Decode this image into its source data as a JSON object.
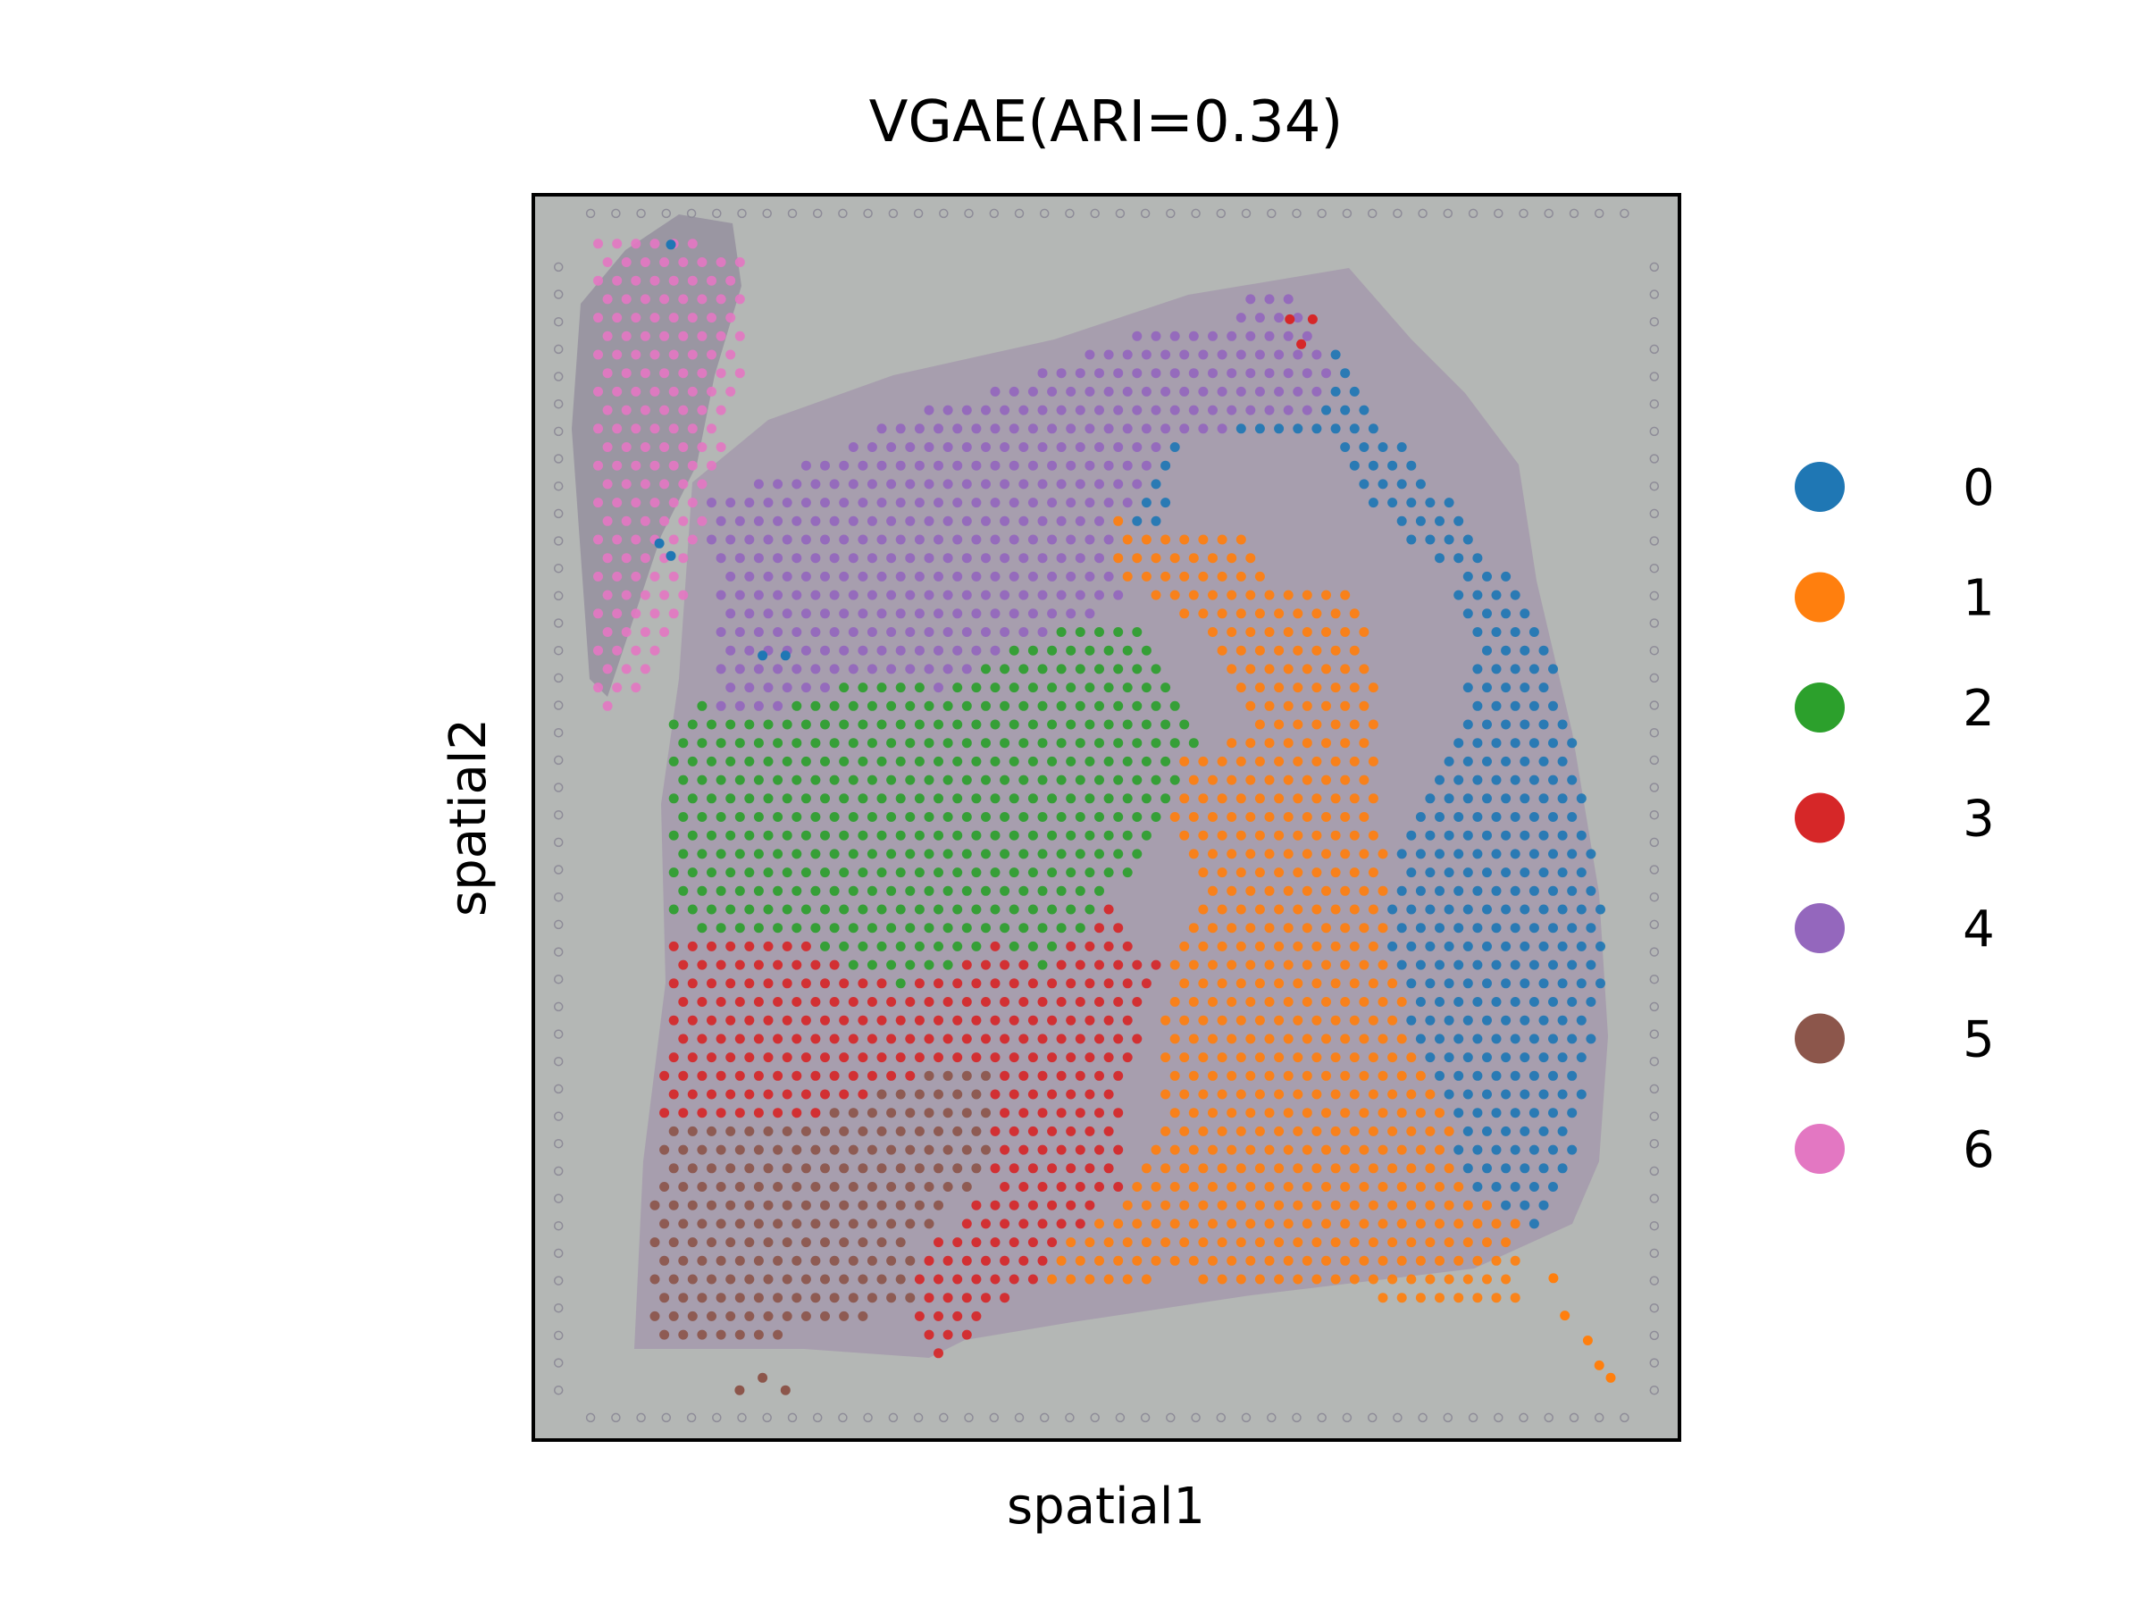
{
  "chart_data": {
    "type": "scatter",
    "title": "VGAE(ARI=0.34)",
    "xlabel": "spatial1",
    "ylabel": "spatial2",
    "xlim": [
      0,
      100
    ],
    "ylim": [
      0,
      100
    ],
    "axis_ticks": "none",
    "grid": false,
    "legend_placement": "right",
    "background": "tissue image",
    "dot_spacing": 1.65,
    "series": [
      {
        "name": "0",
        "color": "#1f77b4"
      },
      {
        "name": "1",
        "color": "#ff7f0e"
      },
      {
        "name": "2",
        "color": "#2ca02c"
      },
      {
        "name": "3",
        "color": "#d62728"
      },
      {
        "name": "4",
        "color": "#9467bd"
      },
      {
        "name": "5",
        "color": "#8c564b"
      },
      {
        "name": "6",
        "color": "#e377c2"
      }
    ],
    "regions": [
      {
        "cluster": "6",
        "polygon": [
          [
            5,
            96
          ],
          [
            12,
            97
          ],
          [
            19,
            95
          ],
          [
            18,
            85
          ],
          [
            15,
            75
          ],
          [
            13,
            65
          ],
          [
            9,
            60
          ],
          [
            5,
            58
          ],
          [
            5,
            70
          ]
        ]
      },
      {
        "cluster": "4",
        "polygon": [
          [
            15,
            76
          ],
          [
            20,
            77
          ],
          [
            32,
            82
          ],
          [
            45,
            86
          ],
          [
            52,
            89
          ],
          [
            60,
            90
          ],
          [
            63,
            93
          ],
          [
            68,
            91
          ],
          [
            70,
            83
          ],
          [
            56,
            80
          ],
          [
            50,
            73
          ],
          [
            52,
            67
          ],
          [
            48,
            66
          ],
          [
            43,
            64
          ],
          [
            36,
            60
          ],
          [
            30,
            62
          ],
          [
            22,
            59
          ],
          [
            16,
            58
          ],
          [
            16,
            64
          ]
        ]
      },
      {
        "cluster": "0",
        "polygon": [
          [
            62,
            92
          ],
          [
            66,
            93
          ],
          [
            73,
            83
          ],
          [
            82,
            73
          ],
          [
            86,
            68
          ],
          [
            90,
            60
          ],
          [
            92,
            50
          ],
          [
            94,
            40
          ],
          [
            92,
            30
          ],
          [
            90,
            20
          ],
          [
            88,
            16
          ],
          [
            82,
            20
          ],
          [
            78,
            30
          ],
          [
            74,
            40
          ],
          [
            76,
            48
          ],
          [
            80,
            55
          ],
          [
            82,
            63
          ],
          [
            80,
            70
          ],
          [
            74,
            74
          ],
          [
            70,
            80
          ],
          [
            62,
            80
          ],
          [
            56,
            80
          ],
          [
            50,
            76
          ],
          [
            54,
            72
          ]
        ]
      },
      {
        "cluster": "1",
        "polygon": [
          [
            50,
            74
          ],
          [
            56,
            73
          ],
          [
            62,
            73
          ],
          [
            65,
            68
          ],
          [
            72,
            68
          ],
          [
            74,
            60
          ],
          [
            74,
            50
          ],
          [
            75,
            40
          ],
          [
            80,
            27
          ],
          [
            88,
            20
          ],
          [
            86,
            17
          ],
          [
            86,
            10
          ],
          [
            68,
            12
          ],
          [
            56,
            13
          ],
          [
            45,
            12
          ],
          [
            45,
            15
          ],
          [
            52,
            20
          ],
          [
            55,
            28
          ],
          [
            55,
            30
          ],
          [
            55,
            35
          ],
          [
            58,
            45
          ],
          [
            55,
            50
          ],
          [
            57,
            55
          ],
          [
            62,
            57
          ],
          [
            62,
            60
          ],
          [
            58,
            65
          ],
          [
            50,
            70
          ]
        ]
      },
      {
        "cluster": "2",
        "polygon": [
          [
            12,
            58
          ],
          [
            17,
            60
          ],
          [
            22,
            61
          ],
          [
            29,
            63
          ],
          [
            36,
            63
          ],
          [
            40,
            64
          ],
          [
            48,
            66
          ],
          [
            53,
            65
          ],
          [
            57,
            59
          ],
          [
            58,
            55
          ],
          [
            55,
            50
          ],
          [
            53,
            45
          ],
          [
            50,
            44
          ],
          [
            45,
            37
          ],
          [
            40,
            40
          ],
          [
            32,
            36
          ],
          [
            24,
            40
          ],
          [
            16,
            40
          ],
          [
            12,
            42
          ]
        ]
      },
      {
        "cluster": "3",
        "polygon": [
          [
            12,
            40
          ],
          [
            20,
            42
          ],
          [
            28,
            40
          ],
          [
            35,
            45
          ],
          [
            45,
            45
          ],
          [
            50,
            43
          ],
          [
            55,
            38
          ],
          [
            52,
            30
          ],
          [
            51,
            20
          ],
          [
            45,
            14
          ],
          [
            40,
            10
          ],
          [
            35,
            6
          ],
          [
            33,
            8
          ],
          [
            33,
            15
          ],
          [
            40,
            20
          ],
          [
            40,
            30
          ],
          [
            36,
            30
          ],
          [
            30,
            28
          ],
          [
            22,
            25
          ],
          [
            15,
            25
          ],
          [
            11,
            25
          ]
        ]
      },
      {
        "cluster": "5",
        "polygon": [
          [
            11,
            26
          ],
          [
            16,
            26
          ],
          [
            22,
            25
          ],
          [
            30,
            29
          ],
          [
            36,
            30
          ],
          [
            40,
            30
          ],
          [
            40,
            22
          ],
          [
            33,
            16
          ],
          [
            33,
            11
          ],
          [
            25,
            9
          ],
          [
            15,
            7
          ],
          [
            10,
            7
          ],
          [
            10,
            15
          ]
        ]
      }
    ],
    "points": [
      {
        "x": 12,
        "y": 96,
        "cluster": "0"
      },
      {
        "x": 11,
        "y": 72,
        "cluster": "0"
      },
      {
        "x": 12,
        "y": 71,
        "cluster": "0"
      },
      {
        "x": 20,
        "y": 63,
        "cluster": "0"
      },
      {
        "x": 22,
        "y": 63,
        "cluster": "0"
      },
      {
        "x": 66,
        "y": 90,
        "cluster": "3"
      },
      {
        "x": 68,
        "y": 90,
        "cluster": "3"
      },
      {
        "x": 67,
        "y": 88,
        "cluster": "3"
      },
      {
        "x": 89,
        "y": 13,
        "cluster": "1"
      },
      {
        "x": 90,
        "y": 10,
        "cluster": "1"
      },
      {
        "x": 92,
        "y": 8,
        "cluster": "1"
      },
      {
        "x": 93,
        "y": 6,
        "cluster": "1"
      },
      {
        "x": 94,
        "y": 5,
        "cluster": "1"
      },
      {
        "x": 18,
        "y": 4,
        "cluster": "5"
      },
      {
        "x": 20,
        "y": 5,
        "cluster": "5"
      },
      {
        "x": 22,
        "y": 4,
        "cluster": "5"
      }
    ]
  }
}
